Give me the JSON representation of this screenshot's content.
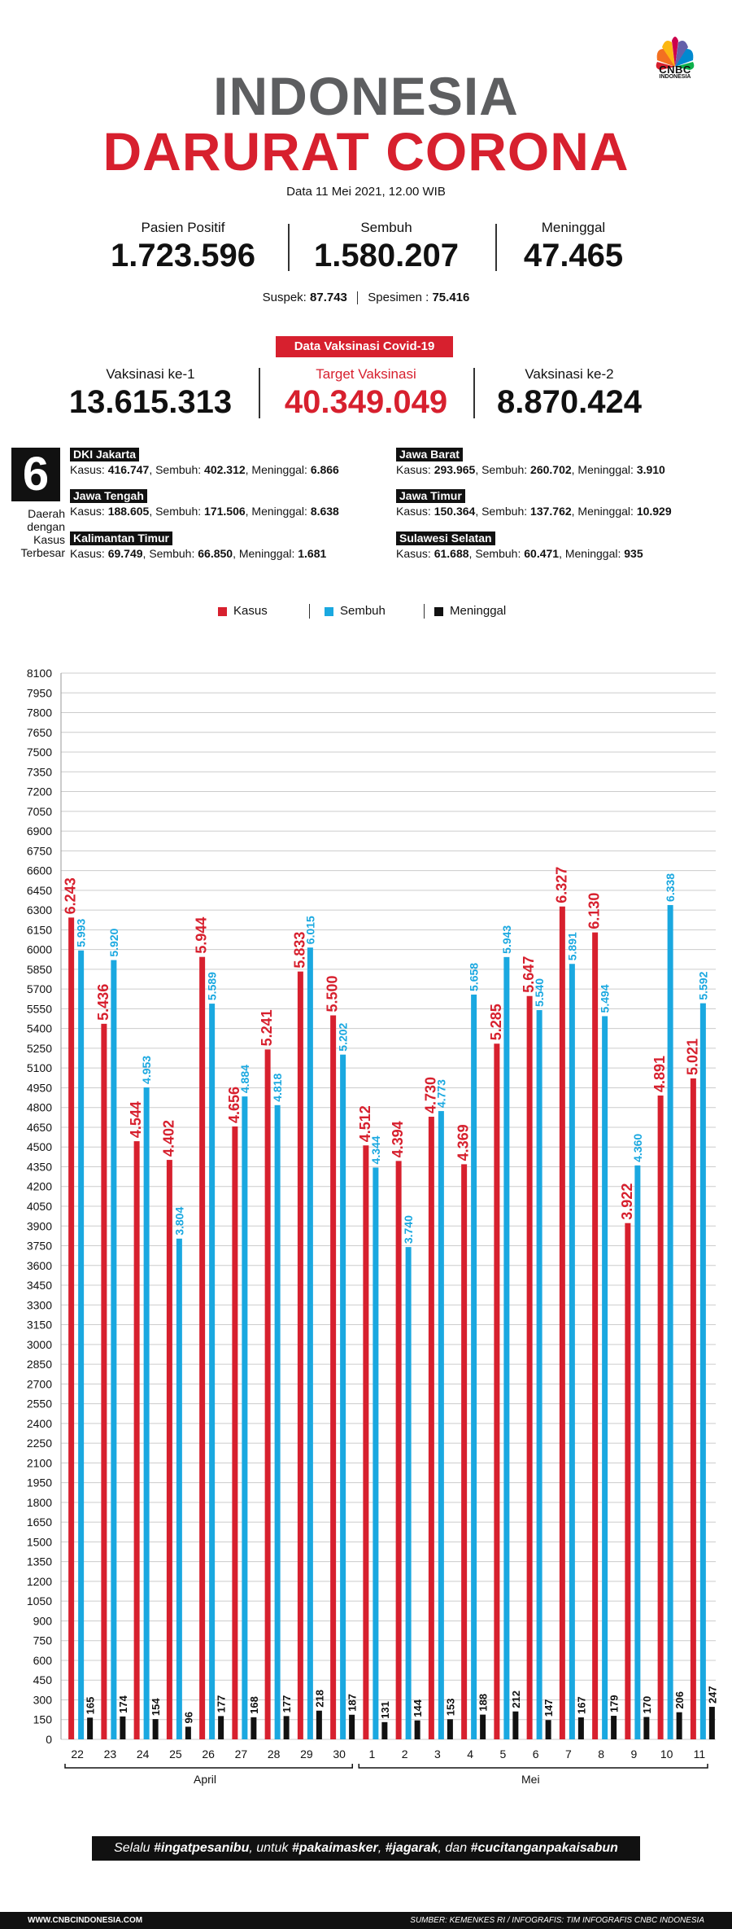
{
  "brand": {
    "logo_text": "CNBC",
    "logo_sub": "INDONESIA"
  },
  "header": {
    "title_line1": "INDONESIA",
    "title_line2": "DARURAT CORONA",
    "date": "Data 11 Mei 2021, 12.00 WIB"
  },
  "stats": {
    "positif": {
      "label": "Pasien Positif",
      "value": "1.723.596"
    },
    "sembuh": {
      "label": "Sembuh",
      "value": "1.580.207"
    },
    "meninggal": {
      "label": "Meninggal",
      "value": "47.465"
    },
    "suspek_label": "Suspek:",
    "suspek_value": "87.743",
    "spesimen_label": "Spesimen :",
    "spesimen_value": "75.416"
  },
  "vaccine": {
    "badge": "Data Vaksinasi Covid-19",
    "dose1": {
      "label": "Vaksinasi ke-1",
      "value": "13.615.313"
    },
    "target": {
      "label": "Target Vaksinasi",
      "value": "40.349.049"
    },
    "dose2": {
      "label": "Vaksinasi ke-2",
      "value": "8.870.424"
    }
  },
  "regions": {
    "count": "6",
    "caption": "Daerah dengan Kasus Terbesar",
    "items": [
      {
        "name": "DKI Jakarta",
        "kasus_label": "Kasus:",
        "kasus": "416.747",
        "sembuh_label": "Sembuh:",
        "sembuh": "402.312",
        "meninggal_label": "Meninggal:",
        "meninggal": "6.866"
      },
      {
        "name": "Jawa Barat",
        "kasus_label": "Kasus:",
        "kasus": "293.965",
        "sembuh_label": "Sembuh:",
        "sembuh": "260.702",
        "meninggal_label": "Meninggal:",
        "meninggal": "3.910"
      },
      {
        "name": "Jawa Tengah",
        "kasus_label": "Kasus:",
        "kasus": "188.605",
        "sembuh_label": "Sembuh:",
        "sembuh": "171.506",
        "meninggal_label": "Meninggal:",
        "meninggal": "8.638"
      },
      {
        "name": "Jawa Timur",
        "kasus_label": "Kasus:",
        "kasus": "150.364",
        "sembuh_label": "Sembuh:",
        "sembuh": "137.762",
        "meninggal_label": "Meninggal:",
        "meninggal": "10.929"
      },
      {
        "name": "Kalimantan Timur",
        "kasus_label": "Kasus:",
        "kasus": "69.749",
        "sembuh_label": "Sembuh:",
        "sembuh": "66.850",
        "meninggal_label": "Meninggal:",
        "meninggal": "1.681"
      },
      {
        "name": "Sulawesi Selatan",
        "kasus_label": "Kasus:",
        "kasus": "61.688",
        "sembuh_label": "Sembuh:",
        "sembuh": "60.471",
        "meninggal_label": "Meninggal:",
        "meninggal": "935"
      }
    ]
  },
  "colors": {
    "kasus": "#d7202e",
    "sembuh": "#1aa8e0",
    "meninggal": "#111111",
    "grid": "#cccccc",
    "title_gray": "#5d5e60"
  },
  "chart_data": {
    "type": "bar",
    "title": "",
    "xlabel": "",
    "ylabel": "",
    "ylim": [
      0,
      8100
    ],
    "ytick_step": 150,
    "grid": true,
    "legend_position": "top-center",
    "categories": [
      "22",
      "23",
      "24",
      "25",
      "26",
      "27",
      "28",
      "29",
      "30",
      "1",
      "2",
      "3",
      "4",
      "5",
      "6",
      "7",
      "8",
      "9",
      "10",
      "11"
    ],
    "groups": [
      {
        "label": "April",
        "categories": [
          "22",
          "23",
          "24",
          "25",
          "26",
          "27",
          "28",
          "29",
          "30"
        ]
      },
      {
        "label": "Mei",
        "categories": [
          "1",
          "2",
          "3",
          "4",
          "5",
          "6",
          "7",
          "8",
          "9",
          "10",
          "11"
        ]
      }
    ],
    "series": [
      {
        "name": "Kasus",
        "color": "#d7202e",
        "values": [
          6243,
          5436,
          4544,
          4402,
          5944,
          4656,
          5241,
          5833,
          5500,
          4512,
          4394,
          4730,
          4369,
          5285,
          5647,
          6327,
          6130,
          3922,
          4891,
          5021
        ],
        "labels": [
          "6.243",
          "5.436",
          "4.544",
          "4.402",
          "5.944",
          "4.656",
          "5.241",
          "5.833",
          "5.500",
          "4.512",
          "4.394",
          "4.730",
          "4.369",
          "5.285",
          "5.647",
          "6.327",
          "6.130",
          "3.922",
          "4.891",
          "5.021"
        ]
      },
      {
        "name": "Sembuh",
        "color": "#1aa8e0",
        "values": [
          5993,
          5920,
          4953,
          3804,
          5589,
          4884,
          4818,
          6015,
          5202,
          4344,
          3740,
          4773,
          5658,
          5943,
          5540,
          5891,
          5494,
          4360,
          6338,
          5592
        ],
        "labels": [
          "5.993",
          "5.920",
          "4.953",
          "3.804",
          "5.589",
          "4.884",
          "4.818",
          "6.015",
          "5.202",
          "4.344",
          "3.740",
          "4.773",
          "5.658",
          "5.943",
          "5.540",
          "5.891",
          "5.494",
          "4.360",
          "6.338",
          "5.592"
        ]
      },
      {
        "name": "Meninggal",
        "color": "#111111",
        "values": [
          165,
          174,
          154,
          96,
          177,
          168,
          177,
          218,
          187,
          131,
          144,
          153,
          188,
          212,
          147,
          167,
          179,
          170,
          206,
          247
        ],
        "labels": [
          "165",
          "174",
          "154",
          "96",
          "177",
          "168",
          "177",
          "218",
          "187",
          "131",
          "144",
          "153",
          "188",
          "212",
          "147",
          "167",
          "179",
          "170",
          "206",
          "247"
        ]
      }
    ]
  },
  "slogan": {
    "p1": "Selalu ",
    "b1": "#ingatpesanibu",
    "p2": ", untuk ",
    "b2": "#pakaimasker",
    "p3": ", ",
    "b3": "#jagarak",
    "p4": ", dan ",
    "b4": "#cucitanganpakaisabun"
  },
  "footer": {
    "left": "WWW.CNBCINDONESIA.COM",
    "right": "SUMBER: KEMENKES RI / INFOGRAFIS: TIM INFOGRAFIS CNBC INDONESIA"
  }
}
